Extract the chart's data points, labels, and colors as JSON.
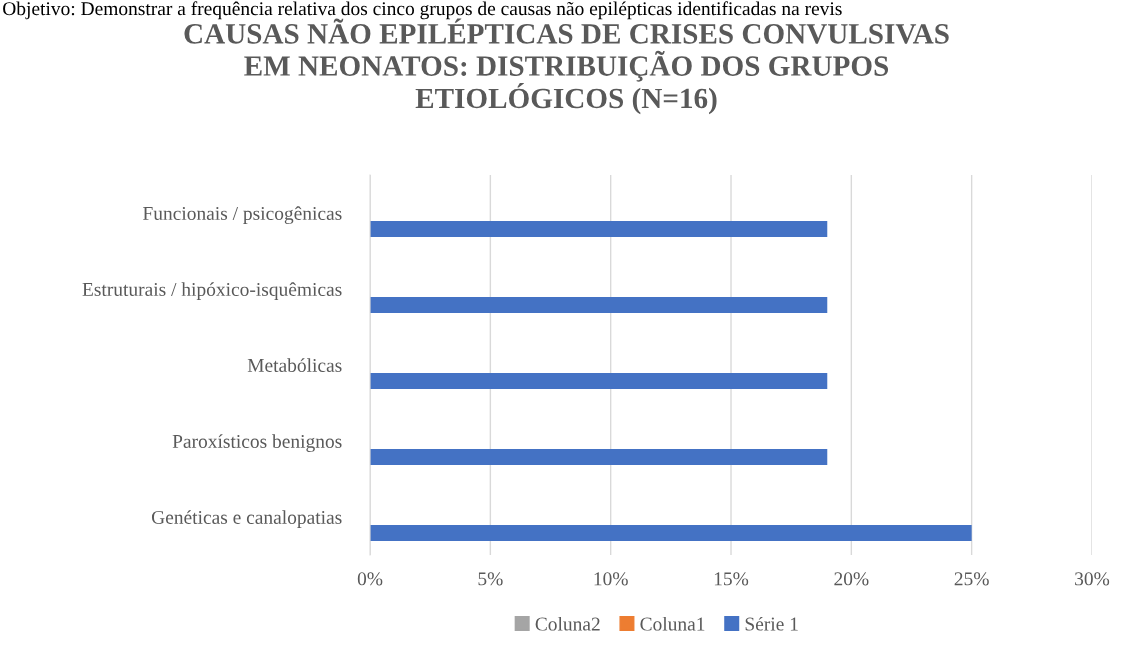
{
  "chart_data": {
    "type": "bar",
    "orientation": "horizontal",
    "title": "CAUSAS NÃO EPILÉPTICAS DE CRISES CONVULSIVAS\nEM NEONATOS: DISTRIBUIÇÃO DOS GRUPOS\nETIOLÓGICOS (N=16)",
    "annotations": [
      "Objetivo: Demonstrar a frequência relativa dos cinco grupos de causas não epilépticas identificadas na revis"
    ],
    "categories": [
      "Funcionais / psicogênicas",
      "Estruturais / hipóxico-isquêmicas",
      "Metabólicas",
      "Paroxísticos benignos",
      "Genéticas e canalopatias"
    ],
    "series": [
      {
        "name": "Série 1",
        "color": "#4472c4",
        "values": [
          19,
          19,
          19,
          19,
          25
        ]
      },
      {
        "name": "Coluna1",
        "color": "#ed7d31",
        "values": [
          null,
          null,
          null,
          null,
          null
        ]
      },
      {
        "name": "Coluna2",
        "color": "#a5a5a5",
        "values": [
          null,
          null,
          null,
          null,
          null
        ]
      }
    ],
    "xlim": [
      0,
      30
    ],
    "xticks": [
      {
        "value": 0,
        "label": "0%"
      },
      {
        "value": 5,
        "label": "5%"
      },
      {
        "value": 10,
        "label": "10%"
      },
      {
        "value": 15,
        "label": "15%"
      },
      {
        "value": 20,
        "label": "20%"
      },
      {
        "value": 25,
        "label": "25%"
      },
      {
        "value": 30,
        "label": "30%"
      }
    ],
    "grid": "x",
    "legend": "bottom"
  }
}
